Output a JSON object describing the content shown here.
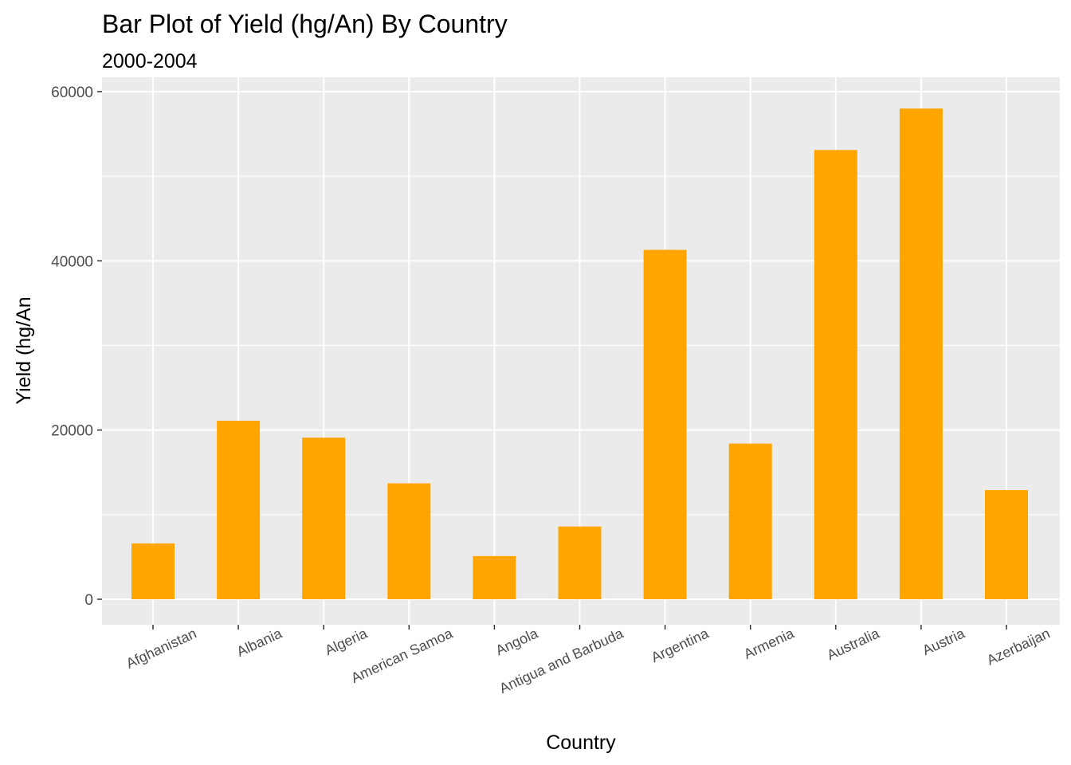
{
  "chart_data": {
    "type": "bar",
    "title": "Bar Plot of Yield (hg/An) By Country",
    "subtitle": "2000-2004",
    "xlabel": "Country",
    "ylabel": "Yield (hg/An",
    "categories": [
      "Afghanistan",
      "Albania",
      "Algeria",
      "American Samoa",
      "Angola",
      "Antigua and Barbuda",
      "Argentina",
      "Armenia",
      "Australia",
      "Austria",
      "Azerbaijan"
    ],
    "values": [
      6600,
      21100,
      19100,
      13700,
      5100,
      8600,
      41300,
      18400,
      53100,
      58000,
      12900
    ],
    "ylim": [
      -3000,
      60000
    ],
    "yticks": [
      0,
      20000,
      40000,
      60000
    ],
    "ytick_labels": [
      "0",
      "20000",
      "40000",
      "60000"
    ],
    "bar_color": "#FFA500",
    "panel_background": "#EBEBEB",
    "grid_color": "#FFFFFF",
    "grid": true,
    "legend": "none"
  }
}
